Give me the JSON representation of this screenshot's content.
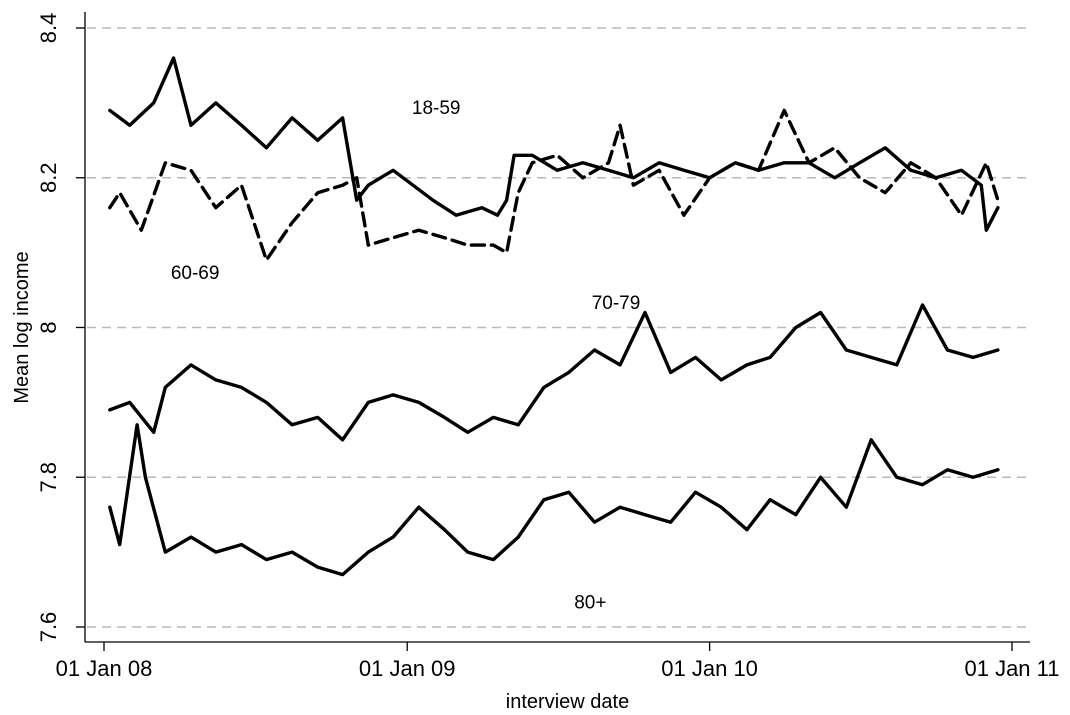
{
  "chart_data": {
    "type": "line",
    "title": "",
    "xlabel": "interview date",
    "ylabel": "Mean log income",
    "x_range": [
      "2008-01-01",
      "2010-12-31"
    ],
    "ylim": [
      7.6,
      8.4
    ],
    "y_ticks": [
      7.6,
      7.8,
      8,
      8.2,
      8.4
    ],
    "y_tick_labels": [
      "7.6",
      "7.8",
      "8",
      "8.2",
      "8.4"
    ],
    "x_ticks": [
      "2008-01-01",
      "2009-01-01",
      "2010-01-01",
      "2011-01-01"
    ],
    "x_tick_labels": [
      "01 Jan 08",
      "01 Jan 09",
      "01 Jan 10",
      "01 Jan 11"
    ],
    "grid": true,
    "series": [
      {
        "name": "18-59",
        "dashed": false,
        "x": [
          "2008-01-08",
          "2008-02-01",
          "2008-03-01",
          "2008-03-25",
          "2008-04-15",
          "2008-05-15",
          "2008-06-15",
          "2008-07-15",
          "2008-08-15",
          "2008-09-15",
          "2008-10-15",
          "2008-11-01",
          "2008-11-15",
          "2008-12-15",
          "2009-01-08",
          "2009-02-01",
          "2009-03-01",
          "2009-04-01",
          "2009-04-20",
          "2009-05-01",
          "2009-05-10",
          "2009-06-01",
          "2009-07-01",
          "2009-08-01",
          "2009-09-01",
          "2009-10-01",
          "2009-11-01",
          "2009-12-01",
          "2010-01-01",
          "2010-02-01",
          "2010-03-01",
          "2010-04-01",
          "2010-05-01",
          "2010-06-01",
          "2010-07-01",
          "2010-08-01",
          "2010-09-01",
          "2010-10-01",
          "2010-11-01",
          "2010-11-25",
          "2010-12-01",
          "2010-12-15"
        ],
        "y": [
          8.29,
          8.27,
          8.3,
          8.36,
          8.27,
          8.3,
          8.27,
          8.24,
          8.28,
          8.25,
          8.28,
          8.17,
          8.19,
          8.21,
          8.19,
          8.17,
          8.15,
          8.16,
          8.15,
          8.17,
          8.23,
          8.23,
          8.21,
          8.22,
          8.21,
          8.2,
          8.22,
          8.21,
          8.2,
          8.22,
          8.21,
          8.22,
          8.22,
          8.2,
          8.22,
          8.24,
          8.21,
          8.2,
          8.21,
          8.19,
          8.13,
          8.16
        ]
      },
      {
        "name": "60-69",
        "dashed": true,
        "x": [
          "2008-01-08",
          "2008-01-20",
          "2008-02-15",
          "2008-03-15",
          "2008-04-15",
          "2008-05-15",
          "2008-06-15",
          "2008-07-15",
          "2008-08-15",
          "2008-09-15",
          "2008-10-15",
          "2008-11-01",
          "2008-11-15",
          "2008-12-15",
          "2009-01-15",
          "2009-02-15",
          "2009-03-15",
          "2009-04-15",
          "2009-05-01",
          "2009-05-15",
          "2009-06-01",
          "2009-07-01",
          "2009-08-01",
          "2009-09-01",
          "2009-09-15",
          "2009-10-01",
          "2009-11-01",
          "2009-12-01",
          "2010-01-01",
          "2010-02-01",
          "2010-03-01",
          "2010-04-01",
          "2010-05-01",
          "2010-06-01",
          "2010-07-01",
          "2010-08-01",
          "2010-09-01",
          "2010-10-01",
          "2010-11-01",
          "2010-12-01",
          "2010-12-15"
        ],
        "y": [
          8.16,
          8.18,
          8.13,
          8.22,
          8.21,
          8.16,
          8.19,
          8.09,
          8.14,
          8.18,
          8.19,
          8.2,
          8.11,
          8.12,
          8.13,
          8.12,
          8.11,
          8.11,
          8.1,
          8.18,
          8.22,
          8.23,
          8.2,
          8.22,
          8.27,
          8.19,
          8.21,
          8.15,
          8.2,
          8.22,
          8.21,
          8.29,
          8.22,
          8.24,
          8.2,
          8.18,
          8.22,
          8.2,
          8.15,
          8.22,
          8.17
        ]
      },
      {
        "name": "70-79",
        "dashed": false,
        "x": [
          "2008-01-08",
          "2008-02-01",
          "2008-03-01",
          "2008-03-15",
          "2008-04-15",
          "2008-05-15",
          "2008-06-15",
          "2008-07-15",
          "2008-08-15",
          "2008-09-15",
          "2008-10-15",
          "2008-11-15",
          "2008-12-15",
          "2009-01-15",
          "2009-02-15",
          "2009-03-15",
          "2009-04-15",
          "2009-05-15",
          "2009-06-15",
          "2009-07-15",
          "2009-08-15",
          "2009-09-15",
          "2009-10-15",
          "2009-11-15",
          "2009-12-15",
          "2010-01-15",
          "2010-02-15",
          "2010-03-15",
          "2010-04-15",
          "2010-05-15",
          "2010-06-15",
          "2010-07-15",
          "2010-08-15",
          "2010-09-15",
          "2010-10-15",
          "2010-11-15",
          "2010-12-15"
        ],
        "y": [
          7.89,
          7.9,
          7.86,
          7.92,
          7.95,
          7.93,
          7.92,
          7.9,
          7.87,
          7.88,
          7.85,
          7.9,
          7.91,
          7.9,
          7.88,
          7.86,
          7.88,
          7.87,
          7.92,
          7.94,
          7.97,
          7.95,
          8.02,
          7.94,
          7.96,
          7.93,
          7.95,
          7.96,
          8.0,
          8.02,
          7.97,
          7.96,
          7.95,
          8.03,
          7.97,
          7.96,
          7.97
        ]
      },
      {
        "name": "80+",
        "dashed": false,
        "x": [
          "2008-01-08",
          "2008-01-20",
          "2008-02-10",
          "2008-02-20",
          "2008-03-15",
          "2008-04-15",
          "2008-05-15",
          "2008-06-15",
          "2008-07-15",
          "2008-08-15",
          "2008-09-15",
          "2008-10-15",
          "2008-11-15",
          "2008-12-15",
          "2009-01-15",
          "2009-02-15",
          "2009-03-15",
          "2009-04-15",
          "2009-05-15",
          "2009-06-15",
          "2009-07-15",
          "2009-08-15",
          "2009-09-15",
          "2009-10-15",
          "2009-11-15",
          "2009-12-15",
          "2010-01-15",
          "2010-02-15",
          "2010-03-15",
          "2010-04-15",
          "2010-05-15",
          "2010-06-15",
          "2010-07-15",
          "2010-08-15",
          "2010-09-15",
          "2010-10-15",
          "2010-11-15",
          "2010-12-15"
        ],
        "y": [
          7.76,
          7.71,
          7.87,
          7.8,
          7.7,
          7.72,
          7.7,
          7.71,
          7.69,
          7.7,
          7.68,
          7.67,
          7.7,
          7.72,
          7.76,
          7.73,
          7.7,
          7.69,
          7.72,
          7.77,
          7.78,
          7.74,
          7.76,
          7.75,
          7.74,
          7.78,
          7.76,
          7.73,
          7.77,
          7.75,
          7.8,
          7.76,
          7.85,
          7.8,
          7.79,
          7.81,
          7.8,
          7.81
        ]
      }
    ]
  },
  "series_labels": [
    {
      "series": "18-59",
      "text": "18-59",
      "x": "2009-02-05",
      "y": 8.285
    },
    {
      "series": "60-69",
      "text": "60-69",
      "x": "2008-04-20",
      "y": 8.065
    },
    {
      "series": "70-79",
      "text": "70-79",
      "x": "2009-09-10",
      "y": 8.025
    },
    {
      "series": "80+",
      "text": "80+",
      "x": "2009-08-10",
      "y": 7.625
    }
  ]
}
